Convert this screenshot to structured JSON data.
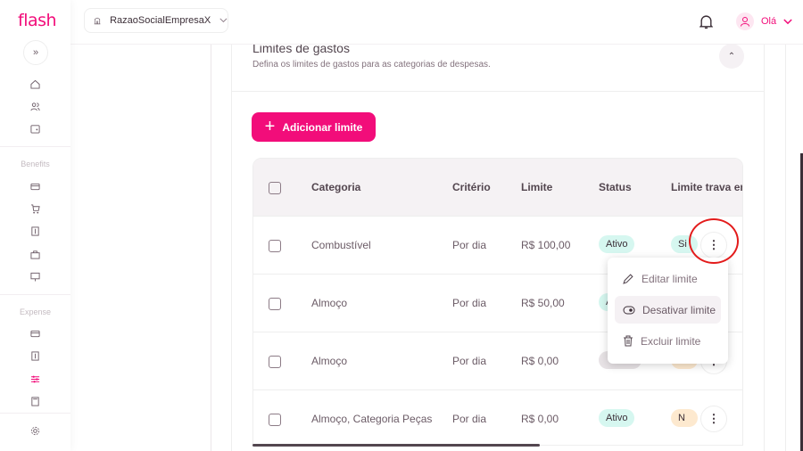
{
  "sidebar": {
    "logo": "flash",
    "expand_icon": "»",
    "sections": [
      {
        "label": "Benefits"
      },
      {
        "label": "Expense"
      }
    ]
  },
  "header": {
    "company": "RazaoSocialEmpresaX",
    "greeting": "Olá"
  },
  "page": {
    "title": "Limites de gastos",
    "subtitle": "Defina os limites de gastos para as categorias de despesas.",
    "add_button": "Adicionar limite"
  },
  "table": {
    "columns": [
      "Categoria",
      "Critério",
      "Limite",
      "Status",
      "Limite trava env"
    ],
    "rows": [
      {
        "categoria": "Combustível",
        "criterio": "Por dia",
        "limite": "R$ 100,00",
        "status": "Ativo",
        "trava": "Si"
      },
      {
        "categoria": "Almoço",
        "criterio": "Por dia",
        "limite": "R$ 50,00",
        "status": "Ativo",
        "trava": ""
      },
      {
        "categoria": "Almoço",
        "criterio": "Por dia",
        "limite": "R$ 0,00",
        "status": "Inativo",
        "trava": ""
      },
      {
        "categoria": "Almoço, Categoria Peças",
        "criterio": "Por dia",
        "limite": "R$ 0,00",
        "status": "Ativo",
        "trava": "N"
      }
    ]
  },
  "menu": {
    "items": [
      {
        "label": "Editar limite",
        "icon": "pencil-icon"
      },
      {
        "label": "Desativar limite",
        "icon": "toggle-icon"
      },
      {
        "label": "Excluir limite",
        "icon": "trash-icon"
      }
    ]
  },
  "colors": {
    "brand": "#f20d7a",
    "active_badge": "#d6f7f0",
    "inactive_badge": "#e8e3e6",
    "no_badge": "#fde9cf",
    "yes_badge": "#d6f7f0"
  }
}
